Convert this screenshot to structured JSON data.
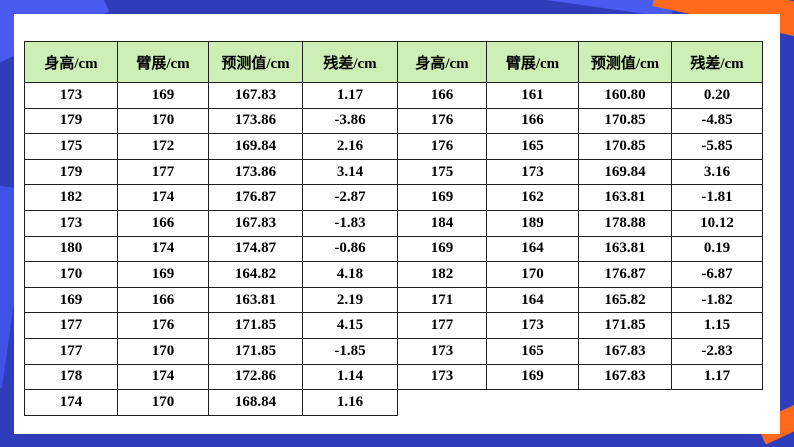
{
  "table": {
    "headers": [
      "身高/cm",
      "臂展/cm",
      "预测值/cm",
      "残差/cm",
      "身高/cm",
      "臂展/cm",
      "预测值/cm",
      "残差/cm"
    ],
    "rows": [
      [
        "173",
        "169",
        "167.83",
        "1.17",
        "166",
        "161",
        "160.80",
        "0.20"
      ],
      [
        "179",
        "170",
        "173.86",
        "-3.86",
        "176",
        "166",
        "170.85",
        "-4.85"
      ],
      [
        "175",
        "172",
        "169.84",
        "2.16",
        "176",
        "165",
        "170.85",
        "-5.85"
      ],
      [
        "179",
        "177",
        "173.86",
        "3.14",
        "175",
        "173",
        "169.84",
        "3.16"
      ],
      [
        "182",
        "174",
        "176.87",
        "-2.87",
        "169",
        "162",
        "163.81",
        "-1.81"
      ],
      [
        "173",
        "166",
        "167.83",
        "-1.83",
        "184",
        "189",
        "178.88",
        "10.12"
      ],
      [
        "180",
        "174",
        "174.87",
        "-0.86",
        "169",
        "164",
        "163.81",
        "0.19"
      ],
      [
        "170",
        "169",
        "164.82",
        "4.18",
        "182",
        "170",
        "176.87",
        "-6.87"
      ],
      [
        "169",
        "166",
        "163.81",
        "2.19",
        "171",
        "164",
        "165.82",
        "-1.82"
      ],
      [
        "177",
        "176",
        "171.85",
        "4.15",
        "177",
        "173",
        "171.85",
        "1.15"
      ],
      [
        "177",
        "170",
        "171.85",
        "-1.85",
        "173",
        "165",
        "167.83",
        "-2.83"
      ],
      [
        "178",
        "174",
        "172.86",
        "1.14",
        "173",
        "169",
        "167.83",
        "1.17"
      ],
      [
        "174",
        "170",
        "168.84",
        "1.16",
        "",
        "",
        "",
        ""
      ]
    ]
  },
  "colors": {
    "header_bg": "#cdeeb4",
    "frame_blue": "#2f3dbb",
    "accent_orange": "#ff6a1a"
  }
}
